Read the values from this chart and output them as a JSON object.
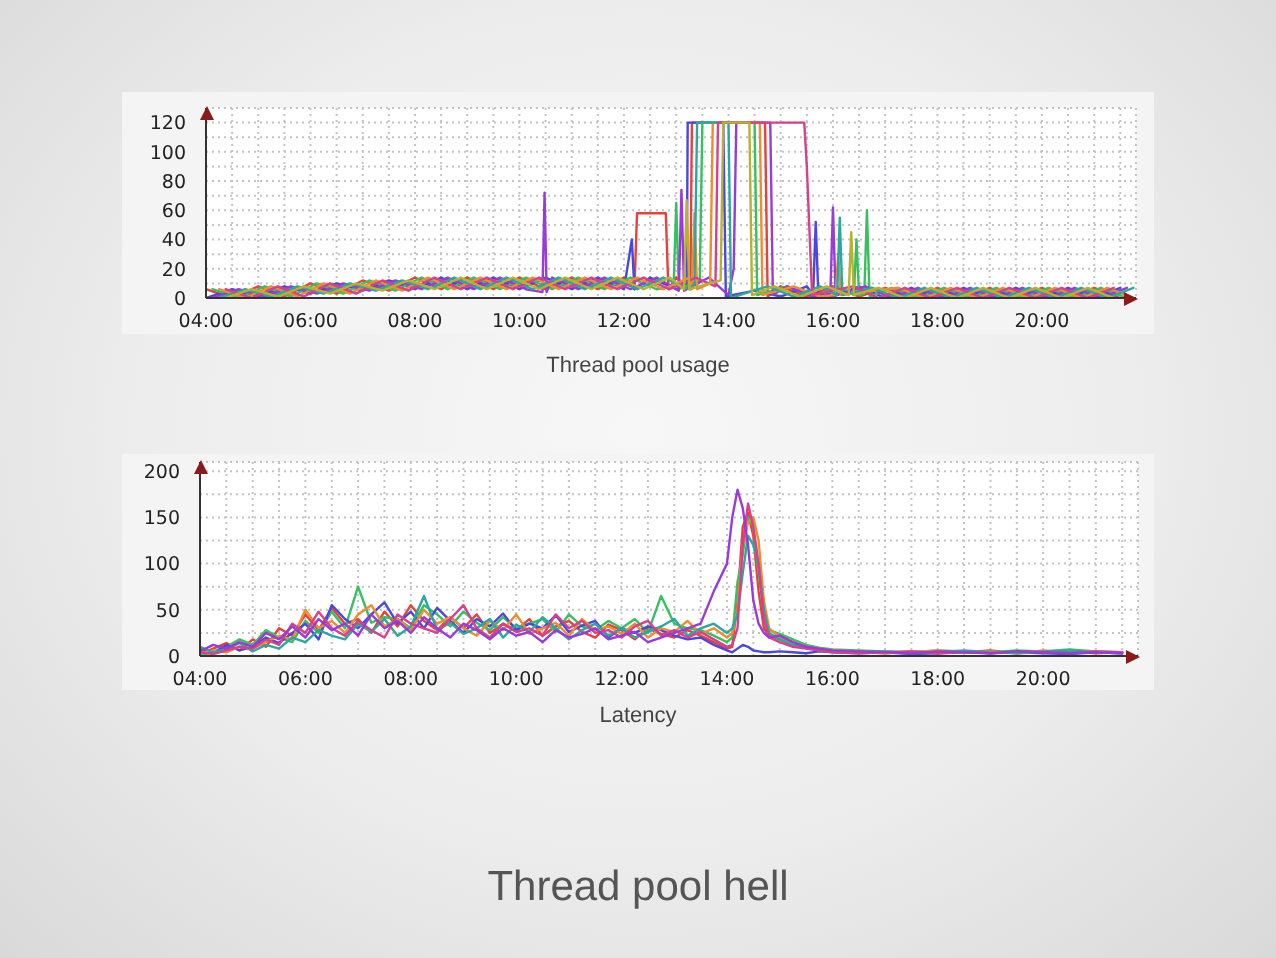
{
  "chart_data": [
    {
      "type": "line",
      "title": "Thread pool usage",
      "grid": true,
      "xlim": [
        4,
        21.8
      ],
      "ylim": [
        0,
        130
      ],
      "xticks": [
        {
          "value": 4,
          "label": "04:00"
        },
        {
          "value": 4.5,
          "label": null
        },
        {
          "value": 5,
          "label": null
        },
        {
          "value": 5.5,
          "label": null
        },
        {
          "value": 6,
          "label": "06:00"
        },
        {
          "value": 6.5,
          "label": null
        },
        {
          "value": 7,
          "label": null
        },
        {
          "value": 7.5,
          "label": null
        },
        {
          "value": 8,
          "label": "08:00"
        },
        {
          "value": 8.5,
          "label": null
        },
        {
          "value": 9,
          "label": null
        },
        {
          "value": 9.5,
          "label": null
        },
        {
          "value": 10,
          "label": "10:00"
        },
        {
          "value": 10.5,
          "label": null
        },
        {
          "value": 11,
          "label": null
        },
        {
          "value": 11.5,
          "label": null
        },
        {
          "value": 12,
          "label": "12:00"
        },
        {
          "value": 12.5,
          "label": null
        },
        {
          "value": 13,
          "label": null
        },
        {
          "value": 13.5,
          "label": null
        },
        {
          "value": 14,
          "label": "14:00"
        },
        {
          "value": 14.5,
          "label": null
        },
        {
          "value": 15,
          "label": null
        },
        {
          "value": 15.5,
          "label": null
        },
        {
          "value": 16,
          "label": "16:00"
        },
        {
          "value": 16.5,
          "label": null
        },
        {
          "value": 17,
          "label": null
        },
        {
          "value": 17.5,
          "label": null
        },
        {
          "value": 18,
          "label": "18:00"
        },
        {
          "value": 18.5,
          "label": null
        },
        {
          "value": 19,
          "label": null
        },
        {
          "value": 19.5,
          "label": null
        },
        {
          "value": 20,
          "label": "20:00"
        },
        {
          "value": 20.5,
          "label": null
        },
        {
          "value": 21,
          "label": null
        },
        {
          "value": 21.5,
          "label": null
        }
      ],
      "yticks": [
        0,
        {
          "value": 10,
          "label": null
        },
        20,
        {
          "value": 30,
          "label": null
        },
        40,
        {
          "value": 50,
          "label": null
        },
        60,
        {
          "value": 70,
          "label": null
        },
        80,
        {
          "value": 90,
          "label": null
        },
        100,
        {
          "value": 110,
          "label": null
        },
        120
      ],
      "series": [
        {
          "color": "#e8403a",
          "x": [
            4,
            4.5,
            5,
            5.5,
            6,
            6.5,
            7,
            7.5,
            8,
            8.5,
            9,
            9.5,
            10,
            10.5,
            11,
            11.5,
            12,
            12.2,
            12.25,
            12.8,
            12.85,
            13,
            13.27,
            13.3,
            14.7,
            14.75,
            15,
            15.5,
            16,
            16.5,
            17,
            17.5,
            18,
            18.5,
            19,
            19.5,
            20,
            20.5,
            21,
            21.5
          ],
          "values": [
            6,
            0,
            8,
            1,
            10,
            3,
            12,
            5,
            14,
            6,
            14,
            6,
            14,
            6,
            14,
            6,
            14,
            6,
            58,
            58,
            6,
            14,
            6,
            120,
            120,
            1,
            8,
            1,
            8,
            1,
            7,
            0,
            7,
            0,
            7,
            0,
            7,
            0,
            7,
            0
          ]
        },
        {
          "color": "#4848e0",
          "x": [
            4,
            4.5,
            5,
            5.5,
            6,
            6.5,
            7,
            7.5,
            8,
            8.5,
            9,
            9.5,
            10,
            10.5,
            11,
            11.5,
            12,
            12.15,
            12.2,
            12.5,
            13,
            13.2,
            13.22,
            13.9,
            13.95,
            14.5,
            15,
            15.5,
            15.62,
            15.67,
            15.72,
            16,
            16.5,
            17,
            17.5,
            18,
            18.5,
            19,
            19.5,
            20,
            20.5,
            21,
            21.5
          ],
          "values": [
            0,
            6,
            1,
            8,
            3,
            10,
            5,
            12,
            6,
            14,
            6,
            14,
            6,
            14,
            6,
            14,
            6,
            40,
            6,
            14,
            6,
            9,
            120,
            120,
            1,
            5,
            1,
            8,
            2,
            52,
            2,
            1,
            8,
            0,
            7,
            0,
            7,
            0,
            7,
            0,
            7,
            0,
            7
          ]
        },
        {
          "color": "#38c060",
          "x": [
            4.125,
            4.625,
            5.125,
            5.625,
            6.125,
            6.625,
            7.125,
            7.625,
            8.125,
            8.625,
            9.125,
            9.625,
            10.125,
            10.625,
            11.125,
            11.625,
            12.125,
            12.625,
            12.95,
            13.0,
            13.05,
            13.45,
            13.5,
            14.5,
            14.55,
            15.125,
            15.625,
            16.125,
            16.4,
            16.45,
            16.5,
            16.6,
            16.65,
            16.7,
            17.125,
            17.625,
            18.125,
            18.625,
            19.125,
            19.625,
            20.125,
            20.625,
            21.125,
            21.625
          ],
          "values": [
            6,
            0,
            8,
            1,
            10,
            3,
            12,
            5,
            14,
            6,
            14,
            6,
            14,
            6,
            14,
            6,
            14,
            6,
            8,
            65,
            6,
            12,
            120,
            120,
            2,
            8,
            1,
            8,
            2,
            40,
            2,
            3,
            60,
            1,
            7,
            0,
            7,
            0,
            7,
            0,
            7,
            0,
            7,
            0
          ]
        },
        {
          "color": "#9a3ad8",
          "x": [
            4.125,
            4.625,
            5.125,
            5.625,
            6.125,
            6.625,
            7.125,
            7.625,
            8.125,
            8.625,
            9.125,
            9.625,
            10.125,
            10.44,
            10.48,
            10.52,
            10.625,
            11.125,
            11.625,
            12.125,
            12.625,
            13.05,
            13.1,
            13.15,
            13.625,
            14.0,
            14.1,
            14.15,
            14.8,
            14.85,
            15.125,
            15.625,
            15.95,
            16.0,
            16.05,
            16.625,
            17.125,
            17.625,
            18.125,
            18.625,
            19.125,
            19.625,
            20.125,
            20.625,
            21.125,
            21.625
          ],
          "values": [
            0,
            6,
            1,
            8,
            3,
            10,
            5,
            12,
            6,
            14,
            6,
            14,
            6,
            4,
            72,
            4,
            14,
            6,
            14,
            6,
            14,
            5,
            74,
            5,
            14,
            2,
            20,
            120,
            120,
            2,
            8,
            1,
            3,
            62,
            2,
            8,
            0,
            7,
            0,
            7,
            0,
            7,
            0,
            7,
            0,
            7
          ]
        },
        {
          "color": "#f08c30",
          "x": [
            4.25,
            4.75,
            5.25,
            5.75,
            6.25,
            6.75,
            7.25,
            7.75,
            8.25,
            8.75,
            9.25,
            9.75,
            10.25,
            10.75,
            11.25,
            11.75,
            12.25,
            12.75,
            13.25,
            13.3,
            13.35,
            13.4,
            13.65,
            13.7,
            14.6,
            14.65,
            15.25,
            15.75,
            16.05,
            16.1,
            16.15,
            17.25,
            17.75,
            18.25,
            18.75,
            19.25,
            19.75,
            20.25,
            20.75,
            21.25,
            21.75
          ],
          "values": [
            6,
            0,
            8,
            1,
            10,
            3,
            12,
            5,
            14,
            6,
            14,
            6,
            14,
            6,
            14,
            6,
            14,
            6,
            14,
            6,
            58,
            6,
            10,
            120,
            120,
            2,
            8,
            1,
            2,
            30,
            2,
            7,
            0,
            7,
            0,
            7,
            0,
            7,
            0,
            7,
            0
          ]
        },
        {
          "color": "#2aa8a0",
          "x": [
            4.25,
            4.75,
            5.25,
            5.75,
            6.25,
            6.75,
            7.25,
            7.75,
            8.25,
            8.75,
            9.25,
            9.75,
            10.25,
            10.75,
            11.25,
            11.75,
            12.25,
            12.75,
            13.25,
            13.35,
            13.4,
            14.0,
            14.05,
            14.3,
            14.75,
            15.25,
            15.75,
            16.08,
            16.13,
            16.18,
            16.75,
            17.25,
            17.75,
            18.25,
            18.75,
            19.25,
            19.75,
            20.25,
            20.75,
            21.25,
            21.75
          ],
          "values": [
            0,
            6,
            1,
            8,
            3,
            10,
            5,
            12,
            6,
            14,
            6,
            14,
            6,
            14,
            6,
            14,
            6,
            14,
            6,
            10,
            120,
            120,
            0,
            3,
            8,
            1,
            8,
            2,
            55,
            2,
            7,
            0,
            7,
            0,
            7,
            0,
            7,
            0,
            7,
            0,
            7
          ]
        },
        {
          "color": "#d8408c",
          "x": [
            4.375,
            4.875,
            5.375,
            5.875,
            6.375,
            6.875,
            7.375,
            7.875,
            8.375,
            8.875,
            9.375,
            9.875,
            10.375,
            10.875,
            11.375,
            11.875,
            12.375,
            12.875,
            13.375,
            13.75,
            13.8,
            15.45,
            15.5,
            15.6,
            16.375,
            16.875,
            17.375,
            17.875,
            18.375,
            18.875,
            19.375,
            19.875,
            20.375,
            20.875,
            21.375
          ],
          "values": [
            6,
            0,
            8,
            1,
            10,
            3,
            12,
            5,
            14,
            6,
            14,
            6,
            14,
            6,
            14,
            6,
            14,
            6,
            14,
            8,
            120,
            120,
            90,
            2,
            8,
            0,
            7,
            0,
            7,
            0,
            7,
            0,
            7,
            0,
            7
          ]
        },
        {
          "color": "#b8b030",
          "x": [
            4.375,
            4.875,
            5.375,
            5.875,
            6.375,
            6.875,
            7.375,
            7.875,
            8.375,
            8.875,
            9.375,
            9.875,
            10.375,
            10.875,
            11.375,
            11.875,
            12.375,
            12.875,
            13.15,
            13.2,
            13.25,
            13.85,
            13.9,
            14.4,
            14.45,
            14.875,
            15.375,
            15.875,
            16.3,
            16.35,
            16.4,
            16.875,
            17.375,
            17.875,
            18.375,
            18.875,
            19.375,
            19.875,
            20.375,
            20.875,
            21.375
          ],
          "values": [
            0,
            6,
            1,
            8,
            3,
            10,
            5,
            12,
            6,
            14,
            6,
            14,
            6,
            14,
            6,
            14,
            6,
            14,
            6,
            67,
            6,
            12,
            120,
            120,
            2,
            8,
            1,
            8,
            2,
            45,
            2,
            7,
            0,
            7,
            0,
            7,
            0,
            7,
            0,
            7,
            0
          ]
        }
      ]
    },
    {
      "type": "line",
      "title": "Latency",
      "annotations": [
        "Thread pool hell"
      ],
      "grid": true,
      "xlim": [
        4,
        21.8
      ],
      "ylim": [
        0,
        210
      ],
      "xticks": [
        {
          "value": 4,
          "label": "04:00"
        },
        {
          "value": 4.5,
          "label": null
        },
        {
          "value": 5,
          "label": null
        },
        {
          "value": 5.5,
          "label": null
        },
        {
          "value": 6,
          "label": "06:00"
        },
        {
          "value": 6.5,
          "label": null
        },
        {
          "value": 7,
          "label": null
        },
        {
          "value": 7.5,
          "label": null
        },
        {
          "value": 8,
          "label": "08:00"
        },
        {
          "value": 8.5,
          "label": null
        },
        {
          "value": 9,
          "label": null
        },
        {
          "value": 9.5,
          "label": null
        },
        {
          "value": 10,
          "label": "10:00"
        },
        {
          "value": 10.5,
          "label": null
        },
        {
          "value": 11,
          "label": null
        },
        {
          "value": 11.5,
          "label": null
        },
        {
          "value": 12,
          "label": "12:00"
        },
        {
          "value": 12.5,
          "label": null
        },
        {
          "value": 13,
          "label": null
        },
        {
          "value": 13.5,
          "label": null
        },
        {
          "value": 14,
          "label": "14:00"
        },
        {
          "value": 14.5,
          "label": null
        },
        {
          "value": 15,
          "label": null
        },
        {
          "value": 15.5,
          "label": null
        },
        {
          "value": 16,
          "label": "16:00"
        },
        {
          "value": 16.5,
          "label": null
        },
        {
          "value": 17,
          "label": null
        },
        {
          "value": 17.5,
          "label": null
        },
        {
          "value": 18,
          "label": "18:00"
        },
        {
          "value": 18.5,
          "label": null
        },
        {
          "value": 19,
          "label": null
        },
        {
          "value": 19.5,
          "label": null
        },
        {
          "value": 20,
          "label": "20:00"
        },
        {
          "value": 20.5,
          "label": null
        },
        {
          "value": 21,
          "label": null
        },
        {
          "value": 21.5,
          "label": null
        }
      ],
      "yticks": [
        0,
        {
          "value": 25,
          "label": null
        },
        50,
        {
          "value": 75,
          "label": null
        },
        100,
        {
          "value": 125,
          "label": null
        },
        150,
        {
          "value": 175,
          "label": null
        },
        200
      ],
      "x": [
        4,
        4.25,
        4.5,
        4.75,
        5,
        5.25,
        5.5,
        5.75,
        6,
        6.25,
        6.5,
        6.75,
        7,
        7.25,
        7.5,
        7.75,
        8,
        8.25,
        8.5,
        8.75,
        9,
        9.25,
        9.5,
        9.75,
        10,
        10.25,
        10.5,
        10.75,
        11,
        11.25,
        11.5,
        11.75,
        12,
        12.25,
        12.5,
        12.75,
        13,
        13.25,
        13.5,
        13.75,
        14,
        14.1,
        14.2,
        14.3,
        14.4,
        14.5,
        14.6,
        14.7,
        14.8,
        15,
        15.25,
        15.5,
        15.75,
        16,
        16.5,
        17,
        17.5,
        18,
        18.5,
        19,
        19.5,
        20,
        20.5,
        21,
        21.5
      ],
      "series": [
        {
          "color": "#e8403a",
          "values": [
            2,
            8,
            14,
            6,
            18,
            10,
            30,
            22,
            45,
            28,
            52,
            35,
            40,
            25,
            48,
            32,
            55,
            38,
            28,
            42,
            30,
            45,
            25,
            35,
            28,
            40,
            22,
            32,
            38,
            26,
            20,
            34,
            28,
            18,
            30,
            24,
            20,
            28,
            22,
            15,
            8,
            10,
            60,
            140,
            155,
            130,
            70,
            30,
            22,
            18,
            12,
            9,
            7,
            5,
            4,
            3,
            5,
            3,
            4,
            6,
            3,
            4,
            5,
            3,
            4
          ]
        },
        {
          "color": "#38c060",
          "values": [
            0,
            5,
            10,
            18,
            12,
            28,
            20,
            15,
            38,
            25,
            48,
            30,
            75,
            36,
            42,
            40,
            30,
            55,
            45,
            32,
            48,
            36,
            28,
            42,
            30,
            35,
            40,
            26,
            45,
            32,
            28,
            38,
            30,
            40,
            25,
            65,
            35,
            30,
            28,
            22,
            15,
            20,
            80,
            110,
            150,
            140,
            90,
            45,
            28,
            24,
            18,
            12,
            9,
            7,
            6,
            5,
            4,
            6,
            5,
            4,
            6,
            5,
            7,
            5,
            4
          ]
        },
        {
          "color": "#4848e0",
          "values": [
            8,
            3,
            12,
            6,
            10,
            20,
            14,
            25,
            35,
            18,
            55,
            40,
            30,
            45,
            58,
            35,
            48,
            30,
            52,
            38,
            25,
            40,
            32,
            46,
            28,
            35,
            30,
            44,
            26,
            33,
            38,
            20,
            30,
            25,
            32,
            28,
            22,
            18,
            20,
            12,
            6,
            4,
            8,
            12,
            10,
            6,
            5,
            4,
            4,
            5,
            4,
            3,
            5,
            4,
            3,
            4,
            2,
            3,
            5,
            3,
            4,
            3,
            2,
            4,
            3
          ]
        },
        {
          "color": "#f08c30",
          "values": [
            3,
            6,
            4,
            10,
            8,
            15,
            22,
            18,
            50,
            30,
            38,
            25,
            45,
            55,
            32,
            40,
            28,
            50,
            35,
            42,
            30,
            22,
            38,
            28,
            45,
            24,
            30,
            36,
            22,
            40,
            28,
            32,
            24,
            35,
            20,
            30,
            26,
            38,
            24,
            30,
            20,
            25,
            50,
            120,
            145,
            150,
            125,
            60,
            30,
            20,
            15,
            10,
            8,
            6,
            5,
            3,
            4,
            6,
            4,
            5,
            3,
            6,
            4,
            5,
            3
          ]
        },
        {
          "color": "#2aa8a0",
          "values": [
            10,
            4,
            8,
            14,
            5,
            12,
            8,
            20,
            15,
            28,
            22,
            18,
            35,
            26,
            40,
            22,
            32,
            65,
            28,
            36,
            24,
            30,
            40,
            20,
            34,
            26,
            42,
            30,
            18,
            28,
            35,
            22,
            30,
            20,
            26,
            32,
            40,
            22,
            30,
            35,
            25,
            30,
            45,
            90,
            130,
            120,
            100,
            50,
            25,
            18,
            12,
            10,
            7,
            5,
            4,
            5,
            3,
            4,
            6,
            4,
            3,
            5,
            6,
            4,
            3
          ]
        },
        {
          "color": "#d8408c",
          "values": [
            4,
            2,
            6,
            10,
            8,
            18,
            12,
            35,
            25,
            48,
            30,
            22,
            38,
            28,
            20,
            45,
            35,
            30,
            25,
            40,
            55,
            30,
            20,
            35,
            26,
            30,
            22,
            45,
            30,
            38,
            25,
            28,
            20,
            32,
            38,
            22,
            28,
            20,
            26,
            18,
            10,
            12,
            30,
            120,
            165,
            140,
            100,
            40,
            20,
            15,
            10,
            8,
            6,
            4,
            3,
            4,
            5,
            3,
            4,
            3,
            5,
            4,
            3,
            5,
            4
          ]
        },
        {
          "color": "#9a3ad8",
          "values": [
            5,
            12,
            8,
            15,
            10,
            25,
            18,
            32,
            20,
            40,
            28,
            35,
            22,
            45,
            30,
            38,
            25,
            42,
            30,
            20,
            35,
            28,
            18,
            30,
            22,
            26,
            15,
            28,
            20,
            24,
            30,
            18,
            22,
            26,
            15,
            20,
            25,
            30,
            35,
            70,
            100,
            150,
            180,
            160,
            120,
            60,
            35,
            25,
            20,
            22,
            15,
            10,
            8,
            6,
            5,
            4,
            3,
            5,
            4,
            3,
            5,
            4,
            3,
            4,
            3
          ]
        }
      ]
    }
  ]
}
